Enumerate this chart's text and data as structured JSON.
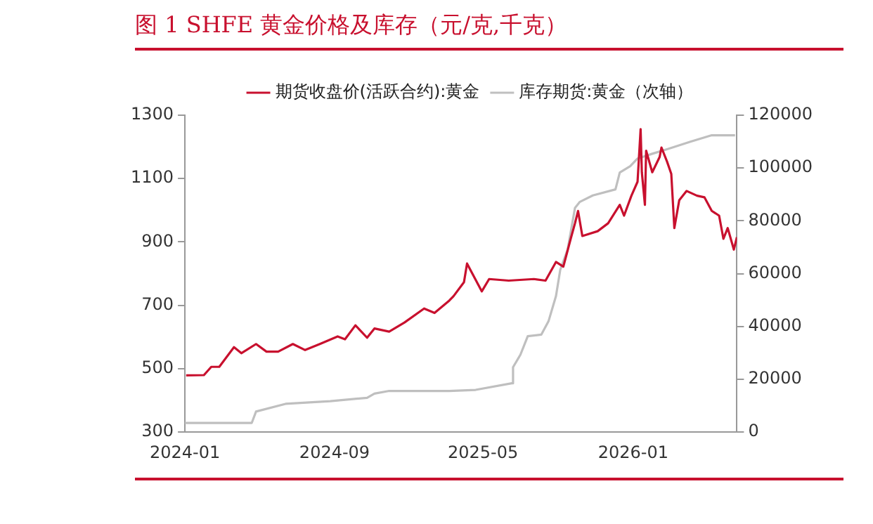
{
  "chart_data": {
    "type": "line",
    "title": "图 1 SHFE 黄金价格及库存（元/克,千克）",
    "xlim": [
      "2024-01-01",
      "2026-06-19"
    ],
    "xticks": [
      "2024-01",
      "2024-09",
      "2025-05",
      "2026-01"
    ],
    "ylim": [
      300,
      1300
    ],
    "yticks": [
      300,
      500,
      700,
      900,
      1100,
      1300
    ],
    "y2lim": [
      0,
      120000
    ],
    "y2ticks": [
      0,
      20000,
      40000,
      60000,
      80000,
      100000,
      120000
    ],
    "grid": false,
    "legend": "top",
    "marker": "none",
    "line_style": "solid",
    "series": [
      {
        "name": "期货收盘价(活跃合约):黄金",
        "color": "#c8102e",
        "x": [
          "2024-01-03",
          "2024-02-01",
          "2024-02-13",
          "2024-02-26",
          "2024-03-21",
          "2024-04-02",
          "2024-04-26",
          "2024-05-13",
          "2024-06-01",
          "2024-06-25",
          "2024-07-15",
          "2024-08-08",
          "2024-09-06",
          "2024-09-18",
          "2024-10-05",
          "2024-10-24",
          "2024-11-05",
          "2024-11-29",
          "2024-12-24",
          "2025-01-25",
          "2025-02-11",
          "2025-03-07",
          "2025-03-14",
          "2025-03-31",
          "2025-04-05",
          "2025-04-17",
          "2025-04-29",
          "2025-05-11",
          "2025-06-12",
          "2025-07-23",
          "2025-08-11",
          "2025-08-28",
          "2025-09-09",
          "2025-09-21",
          "2025-09-28",
          "2025-10-03",
          "2025-10-10",
          "2025-11-04",
          "2025-11-21",
          "2025-12-10",
          "2025-12-17",
          "2025-12-29",
          "2026-01-08",
          "2026-01-13",
          "2026-01-15",
          "2026-01-20",
          "2026-01-22",
          "2026-02-01",
          "2026-02-13",
          "2026-02-16",
          "2026-02-25",
          "2026-03-04",
          "2026-03-09",
          "2026-03-17",
          "2026-03-29",
          "2026-04-15",
          "2026-04-27",
          "2026-05-09",
          "2026-05-21",
          "2026-05-28",
          "2026-06-04",
          "2026-06-14",
          "2026-06-19"
        ],
        "values": [
          479,
          480,
          506,
          506,
          568,
          549,
          578,
          554,
          554,
          578,
          559,
          578,
          602,
          593,
          637,
          598,
          627,
          617,
          646,
          690,
          676,
          715,
          729,
          773,
          832,
          788,
          744,
          783,
          778,
          783,
          778,
          837,
          822,
          910,
          959,
          998,
          919,
          934,
          959,
          1017,
          983,
          1046,
          1090,
          1256,
          1120,
          1017,
          1188,
          1120,
          1168,
          1198,
          1154,
          1115,
          944,
          1032,
          1061,
          1046,
          1041,
          998,
          983,
          910,
          944,
          876,
          915
        ]
      },
      {
        "name": "库存期货:黄金（次轴）",
        "color": "#bfbfbf",
        "axis": "y2",
        "x": [
          "2024-01-01",
          "2024-04-19",
          "2024-04-26",
          "2024-06-13",
          "2024-08-25",
          "2024-10-24",
          "2024-11-05",
          "2024-11-29",
          "2025-03-07",
          "2025-04-19",
          "2025-06-17",
          "2025-06-19",
          "2025-07-01",
          "2025-07-13",
          "2025-08-04",
          "2025-08-16",
          "2025-08-28",
          "2025-09-04",
          "2025-09-16",
          "2025-09-28",
          "2025-10-06",
          "2025-10-27",
          "2025-12-03",
          "2025-12-10",
          "2025-12-27",
          "2026-01-08",
          "2026-02-01",
          "2026-02-25",
          "2026-04-05",
          "2026-05-09",
          "2026-06-16"
        ],
        "values": [
          3500,
          3500,
          7800,
          10700,
          11700,
          13000,
          14600,
          15600,
          15600,
          16000,
          18500,
          24600,
          29300,
          36300,
          36900,
          42100,
          51500,
          61500,
          69100,
          84900,
          87200,
          89600,
          91900,
          98300,
          100700,
          103600,
          105400,
          107100,
          110000,
          112400,
          112400
        ]
      }
    ]
  }
}
